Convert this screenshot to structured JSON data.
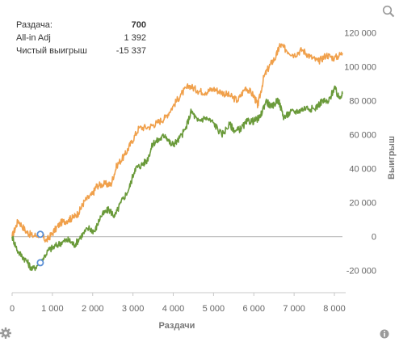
{
  "tooltip": {
    "hand_label": "Раздача:",
    "hand_value": "700",
    "allin_label": "All-in Adj",
    "allin_value": "1 392",
    "net_label": "Чистый выигрыш",
    "net_value": "-15 337"
  },
  "icons": {
    "zoom": "magnifier-icon",
    "settings": "gear-icon",
    "info": "info-icon"
  },
  "colors": {
    "allin_series": "#f0a04b",
    "net_series": "#6a9a3a",
    "marker": "#5b8fd6",
    "zero_line": "#bbbbbb"
  },
  "chart_data": {
    "type": "line",
    "xlabel": "Раздачи",
    "ylabel": "Выигрыш",
    "xlim": [
      0,
      8200
    ],
    "ylim": [
      -33000,
      126000
    ],
    "x_ticks": [
      0,
      1000,
      2000,
      3000,
      4000,
      5000,
      6000,
      7000,
      8000
    ],
    "x_tick_labels": [
      "0",
      "1 000",
      "2 000",
      "3 000",
      "4 000",
      "5 000",
      "6 000",
      "7 000",
      "8 000"
    ],
    "y_ticks": [
      -20000,
      0,
      20000,
      40000,
      60000,
      80000,
      100000,
      120000
    ],
    "y_tick_labels": [
      "-20 000",
      "0",
      "20 000",
      "40 000",
      "60 000",
      "80 000",
      "100 000",
      "120 000"
    ],
    "grid": false,
    "y_axis_side": "right",
    "series": [
      {
        "key": "allin",
        "color": "#f0a04b",
        "points": [
          [
            0,
            0
          ],
          [
            150,
            9500
          ],
          [
            350,
            3000
          ],
          [
            500,
            500
          ],
          [
            700,
            1392
          ],
          [
            850,
            -2500
          ],
          [
            1000,
            2000
          ],
          [
            1200,
            8000
          ],
          [
            1400,
            10000
          ],
          [
            1500,
            11000
          ],
          [
            1650,
            14000
          ],
          [
            1800,
            21000
          ],
          [
            2000,
            25000
          ],
          [
            2100,
            30000
          ],
          [
            2300,
            31000
          ],
          [
            2450,
            30500
          ],
          [
            2600,
            42000
          ],
          [
            2800,
            48000
          ],
          [
            2950,
            55000
          ],
          [
            3150,
            64000
          ],
          [
            3400,
            64500
          ],
          [
            3600,
            67000
          ],
          [
            3800,
            70000
          ],
          [
            4000,
            77000
          ],
          [
            4200,
            84000
          ],
          [
            4400,
            89000
          ],
          [
            4600,
            86000
          ],
          [
            4800,
            85000
          ],
          [
            5000,
            87000
          ],
          [
            5200,
            85000
          ],
          [
            5400,
            83000
          ],
          [
            5600,
            80000
          ],
          [
            5800,
            88000
          ],
          [
            6000,
            83000
          ],
          [
            6100,
            77000
          ],
          [
            6250,
            94000
          ],
          [
            6400,
            101000
          ],
          [
            6550,
            106000
          ],
          [
            6650,
            113000
          ],
          [
            6800,
            110000
          ],
          [
            7000,
            107000
          ],
          [
            7200,
            110000
          ],
          [
            7400,
            106000
          ],
          [
            7600,
            103000
          ],
          [
            7800,
            107000
          ],
          [
            8000,
            105000
          ],
          [
            8200,
            108000
          ]
        ]
      },
      {
        "key": "net",
        "color": "#6a9a3a",
        "points": [
          [
            0,
            0
          ],
          [
            150,
            -9000
          ],
          [
            350,
            -14000
          ],
          [
            500,
            -19500
          ],
          [
            700,
            -15337
          ],
          [
            900,
            -8000
          ],
          [
            1050,
            -6000
          ],
          [
            1250,
            -3000
          ],
          [
            1400,
            -2000
          ],
          [
            1550,
            -5000
          ],
          [
            1700,
            0
          ],
          [
            1900,
            5000
          ],
          [
            2050,
            3000
          ],
          [
            2200,
            12000
          ],
          [
            2400,
            16000
          ],
          [
            2550,
            12000
          ],
          [
            2700,
            20000
          ],
          [
            2900,
            28000
          ],
          [
            3050,
            40000
          ],
          [
            3200,
            42000
          ],
          [
            3350,
            45000
          ],
          [
            3500,
            55000
          ],
          [
            3650,
            57000
          ],
          [
            3800,
            60000
          ],
          [
            3950,
            54000
          ],
          [
            4100,
            56000
          ],
          [
            4300,
            63000
          ],
          [
            4450,
            74000
          ],
          [
            4600,
            68000
          ],
          [
            4800,
            70000
          ],
          [
            5000,
            67000
          ],
          [
            5200,
            60000
          ],
          [
            5400,
            66000
          ],
          [
            5550,
            62000
          ],
          [
            5700,
            64000
          ],
          [
            5850,
            68000
          ],
          [
            6000,
            68000
          ],
          [
            6150,
            70000
          ],
          [
            6300,
            80000
          ],
          [
            6450,
            76000
          ],
          [
            6600,
            81000
          ],
          [
            6750,
            70000
          ],
          [
            6900,
            73000
          ],
          [
            7100,
            74000
          ],
          [
            7300,
            76000
          ],
          [
            7500,
            75000
          ],
          [
            7700,
            80000
          ],
          [
            7850,
            79000
          ],
          [
            8000,
            88000
          ],
          [
            8100,
            82000
          ],
          [
            8200,
            84000
          ]
        ]
      }
    ],
    "markers": [
      {
        "series": "allin",
        "x": 700,
        "y": 1392
      },
      {
        "series": "net",
        "x": 700,
        "y": -15337
      }
    ]
  }
}
